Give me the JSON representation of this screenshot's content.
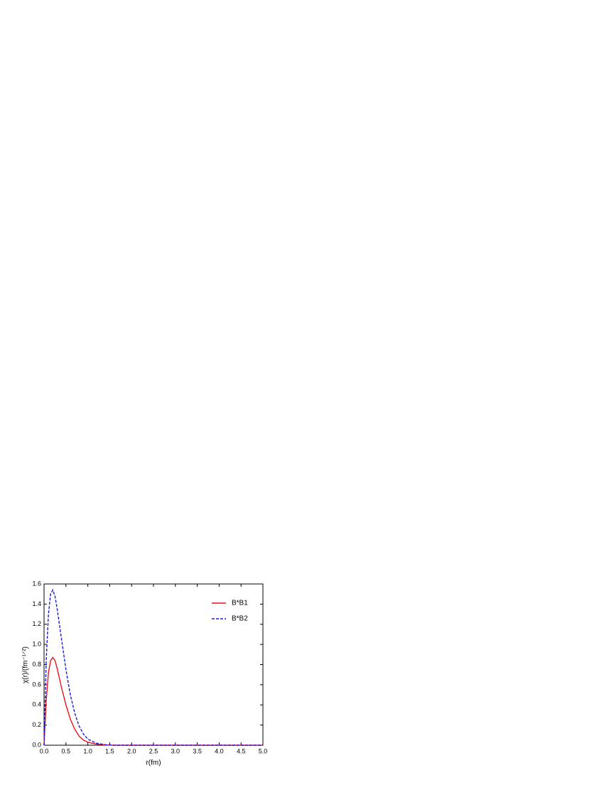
{
  "chart_data": {
    "type": "line",
    "x_label": "r(fm)",
    "y_label": "χ(r)/(fm⁻¹ᐟ²)",
    "x": [
      0,
      0.05,
      0.1,
      0.15,
      0.2,
      0.25,
      0.3,
      0.4,
      0.5,
      0.6,
      0.7,
      0.8,
      0.9,
      1.0,
      1.2,
      1.4,
      1.6,
      2.0,
      3.0,
      4.0,
      5.0
    ],
    "series": [
      {
        "name": "B*B1",
        "color": "#e8141a",
        "dash": "solid",
        "values": [
          0,
          0.45,
          0.72,
          0.84,
          0.87,
          0.84,
          0.76,
          0.57,
          0.4,
          0.26,
          0.16,
          0.09,
          0.05,
          0.03,
          0.01,
          0.003,
          0,
          0,
          0,
          0,
          0
        ]
      },
      {
        "name": "B*B2",
        "color": "#1a1ae6",
        "dash": "dashed",
        "values": [
          0,
          0.85,
          1.3,
          1.5,
          1.54,
          1.48,
          1.35,
          1.05,
          0.75,
          0.5,
          0.32,
          0.19,
          0.11,
          0.06,
          0.02,
          0.005,
          0,
          0,
          0,
          0,
          0
        ]
      }
    ],
    "xlim": [
      0,
      5
    ],
    "xticks": [
      {
        "value": 0,
        "label": "0.0"
      },
      0.5,
      {
        "value": 1,
        "label": "1.0"
      },
      1.5,
      {
        "value": 2,
        "label": "2.0"
      },
      2.5,
      {
        "value": 3,
        "label": "3.0"
      },
      3.5,
      {
        "value": 4,
        "label": "4.0"
      },
      4.5,
      {
        "value": 5,
        "label": "5.0"
      }
    ],
    "ylim": [
      0,
      1.6
    ],
    "yticks": [
      {
        "value": 0,
        "label": "0.0"
      },
      0.2,
      0.4,
      0.6,
      0.8,
      {
        "value": 1,
        "label": "1.0"
      },
      1.2,
      1.4,
      1.6
    ],
    "legend": "upper right",
    "grid": false
  }
}
